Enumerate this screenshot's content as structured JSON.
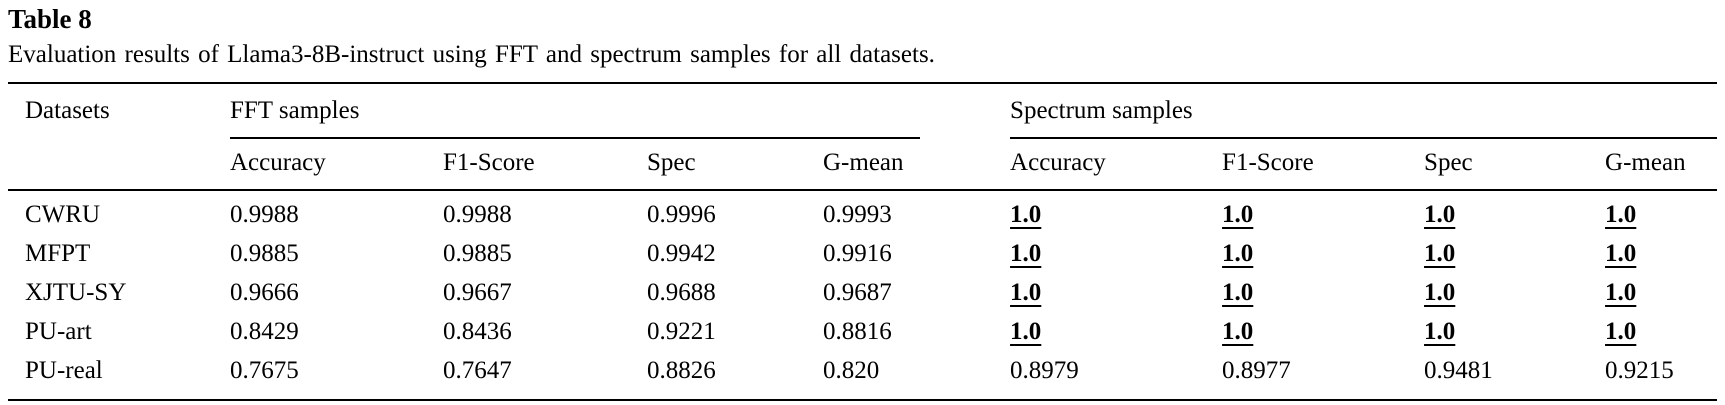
{
  "table": {
    "label": "Table 8",
    "caption": "Evaluation results of Llama3-8B-instruct using FFT and spectrum samples for all datasets.",
    "header": {
      "datasets_col": "Datasets",
      "groups": [
        {
          "label": "FFT samples",
          "subcolumns": [
            "Accuracy",
            "F1-Score",
            "Spec",
            "G-mean"
          ]
        },
        {
          "label": "Spectrum samples",
          "subcolumns": [
            "Accuracy",
            "F1-Score",
            "Spec",
            "G-mean"
          ]
        }
      ]
    },
    "rows": [
      {
        "dataset": "CWRU",
        "fft": [
          {
            "v": "0.9988"
          },
          {
            "v": "0.9988"
          },
          {
            "v": "0.9996"
          },
          {
            "v": "0.9993"
          }
        ],
        "spectrum": [
          {
            "v": "1.0",
            "em": true
          },
          {
            "v": "1.0",
            "em": true
          },
          {
            "v": "1.0",
            "em": true
          },
          {
            "v": "1.0",
            "em": true
          }
        ]
      },
      {
        "dataset": "MFPT",
        "fft": [
          {
            "v": "0.9885"
          },
          {
            "v": "0.9885"
          },
          {
            "v": "0.9942"
          },
          {
            "v": "0.9916"
          }
        ],
        "spectrum": [
          {
            "v": "1.0",
            "em": true
          },
          {
            "v": "1.0",
            "em": true
          },
          {
            "v": "1.0",
            "em": true
          },
          {
            "v": "1.0",
            "em": true
          }
        ]
      },
      {
        "dataset": "XJTU-SY",
        "fft": [
          {
            "v": "0.9666"
          },
          {
            "v": "0.9667"
          },
          {
            "v": "0.9688"
          },
          {
            "v": "0.9687"
          }
        ],
        "spectrum": [
          {
            "v": "1.0",
            "em": true
          },
          {
            "v": "1.0",
            "em": true
          },
          {
            "v": "1.0",
            "em": true
          },
          {
            "v": "1.0",
            "em": true
          }
        ]
      },
      {
        "dataset": "PU-art",
        "fft": [
          {
            "v": "0.8429"
          },
          {
            "v": "0.8436"
          },
          {
            "v": "0.9221"
          },
          {
            "v": "0.8816"
          }
        ],
        "spectrum": [
          {
            "v": "1.0",
            "em": true
          },
          {
            "v": "1.0",
            "em": true
          },
          {
            "v": "1.0",
            "em": true
          },
          {
            "v": "1.0",
            "em": true
          }
        ]
      },
      {
        "dataset": "PU-real",
        "fft": [
          {
            "v": "0.7675"
          },
          {
            "v": "0.7647"
          },
          {
            "v": "0.8826"
          },
          {
            "v": "0.820"
          }
        ],
        "spectrum": [
          {
            "v": "0.8979"
          },
          {
            "v": "0.8977"
          },
          {
            "v": "0.9481"
          },
          {
            "v": "0.9215"
          }
        ]
      }
    ]
  }
}
